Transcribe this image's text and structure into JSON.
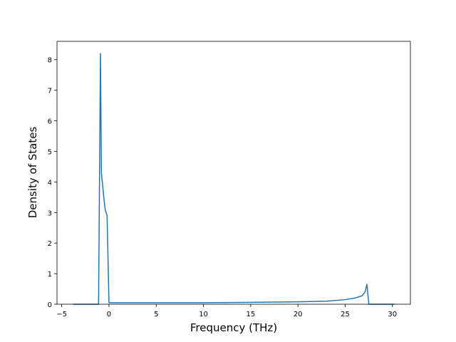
{
  "chart_data": {
    "type": "line",
    "x_label": "Frequency (THz)",
    "y_label": "Density of States",
    "xlim": [
      -5.5,
      31.9
    ],
    "ylim": [
      0,
      8.6
    ],
    "xticks": [
      {
        "value": -5,
        "label": "−5"
      },
      0,
      5,
      10,
      15,
      20,
      25,
      30
    ],
    "yticks": [
      0,
      1,
      2,
      3,
      4,
      5,
      6,
      7,
      8
    ],
    "grid": false,
    "series": [
      {
        "color": "#1f77b4",
        "x": [
          -3.8,
          -1.1,
          -0.9,
          -0.8,
          -0.55,
          -0.4,
          -0.2,
          0,
          5,
          10,
          15,
          20,
          23,
          25,
          26,
          26.8,
          27.1,
          27.3,
          27.5,
          30.2
        ],
        "values": [
          0,
          0,
          8.2,
          4.3,
          3.5,
          3.1,
          2.9,
          0.05,
          0.05,
          0.05,
          0.06,
          0.08,
          0.1,
          0.15,
          0.2,
          0.28,
          0.4,
          0.65,
          0,
          0
        ]
      }
    ]
  }
}
